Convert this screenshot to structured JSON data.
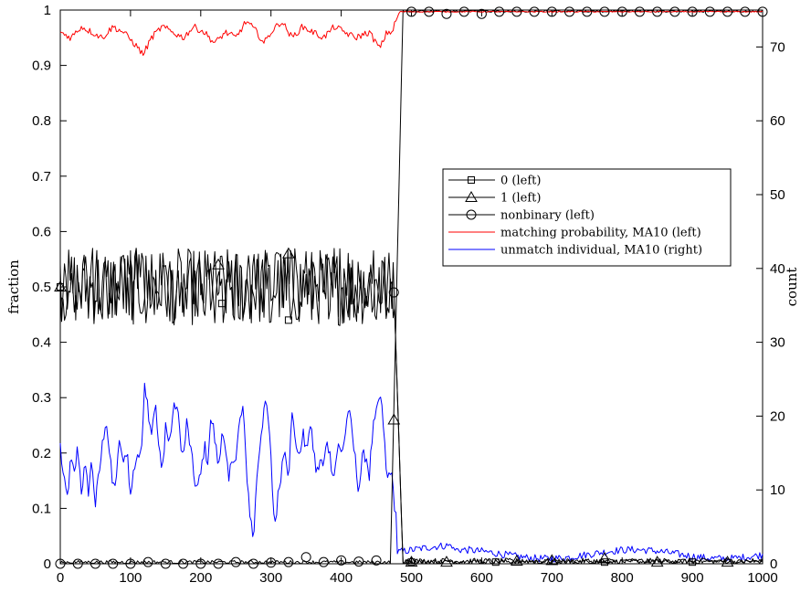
{
  "chart_data": {
    "type": "line",
    "xlim": [
      0,
      1000
    ],
    "ylim_left": [
      0,
      1
    ],
    "ylim_right": [
      0,
      75
    ],
    "ylabel_left": "fraction",
    "ylabel_right": "count",
    "x_ticks": [
      "0",
      "100",
      "200",
      "300",
      "400",
      "500",
      "600",
      "700",
      "800",
      "900",
      "1000"
    ],
    "y_left_ticks": [
      "0",
      "0.1",
      "0.2",
      "0.3",
      "0.4",
      "0.5",
      "0.6",
      "0.7",
      "0.8",
      "0.9",
      "1"
    ],
    "y_right_ticks": [
      "0",
      "10",
      "20",
      "30",
      "40",
      "50",
      "60",
      "70"
    ],
    "transition_x": 480,
    "grid": false,
    "legend_position": "center-right",
    "series": [
      {
        "name": "0 (left)",
        "axis": "left",
        "color": "#000000",
        "marker": "square",
        "before_mean": 0.5,
        "before_amplitude": 0.07,
        "after_mean": 0.0,
        "after_amplitude": 0.004,
        "marker_points": [
          [
            0,
            0.5
          ],
          [
            230,
            0.47
          ],
          [
            325,
            0.44
          ],
          [
            500,
            0.003
          ],
          [
            620,
            0.003
          ],
          [
            775,
            0.003
          ],
          [
            900,
            0.003
          ]
        ]
      },
      {
        "name": "1 (left)",
        "axis": "left",
        "color": "#000000",
        "marker": "triangle",
        "before_mean": 0.5,
        "before_amplitude": 0.07,
        "after_mean": 0.0,
        "after_amplitude": 0.005,
        "marker_points": [
          [
            0,
            0.5
          ],
          [
            225,
            0.54
          ],
          [
            325,
            0.56
          ],
          [
            475,
            0.26
          ],
          [
            500,
            0.003
          ],
          [
            550,
            0.003
          ],
          [
            650,
            0.005
          ],
          [
            700,
            0.006
          ],
          [
            775,
            0.01
          ],
          [
            850,
            0.003
          ],
          [
            950,
            0.003
          ]
        ]
      },
      {
        "name": "nonbinary (left)",
        "axis": "left",
        "color": "#000000",
        "marker": "circle",
        "before_mean": 0.0,
        "before_amplitude": 0.006,
        "after_mean": 1.0,
        "after_amplitude": 0.004,
        "marker_points": [
          [
            0,
            0
          ],
          [
            25,
            0
          ],
          [
            50,
            0
          ],
          [
            75,
            0
          ],
          [
            100,
            0
          ],
          [
            125,
            0.003
          ],
          [
            150,
            0
          ],
          [
            175,
            0
          ],
          [
            200,
            0
          ],
          [
            225,
            0
          ],
          [
            250,
            0.003
          ],
          [
            275,
            0
          ],
          [
            300,
            0.002
          ],
          [
            325,
            0.003
          ],
          [
            350,
            0.012
          ],
          [
            375,
            0.003
          ],
          [
            400,
            0.006
          ],
          [
            425,
            0.004
          ],
          [
            450,
            0.006
          ],
          [
            475,
            0.49
          ],
          [
            500,
            0.997
          ],
          [
            525,
            0.997
          ],
          [
            550,
            0.993
          ],
          [
            575,
            0.997
          ],
          [
            600,
            0.993
          ],
          [
            625,
            0.997
          ],
          [
            650,
            0.997
          ],
          [
            675,
            0.997
          ],
          [
            700,
            0.997
          ],
          [
            725,
            0.997
          ],
          [
            750,
            0.997
          ],
          [
            775,
            0.997
          ],
          [
            800,
            0.997
          ],
          [
            825,
            0.997
          ],
          [
            850,
            0.997
          ],
          [
            875,
            0.997
          ],
          [
            900,
            0.997
          ],
          [
            925,
            0.997
          ],
          [
            950,
            0.997
          ],
          [
            975,
            0.997
          ],
          [
            1000,
            0.997
          ]
        ]
      },
      {
        "name": "matching probability, MA10 (left)",
        "axis": "left",
        "color": "#ff0000",
        "points": [
          [
            0,
            0.96
          ],
          [
            15,
            0.95
          ],
          [
            30,
            0.97
          ],
          [
            45,
            0.96
          ],
          [
            60,
            0.95
          ],
          [
            75,
            0.97
          ],
          [
            90,
            0.96
          ],
          [
            105,
            0.94
          ],
          [
            118,
            0.92
          ],
          [
            130,
            0.95
          ],
          [
            145,
            0.97
          ],
          [
            160,
            0.96
          ],
          [
            175,
            0.95
          ],
          [
            190,
            0.97
          ],
          [
            205,
            0.96
          ],
          [
            220,
            0.94
          ],
          [
            235,
            0.96
          ],
          [
            250,
            0.95
          ],
          [
            265,
            0.98
          ],
          [
            280,
            0.96
          ],
          [
            290,
            0.94
          ],
          [
            300,
            0.96
          ],
          [
            315,
            0.98
          ],
          [
            330,
            0.95
          ],
          [
            345,
            0.97
          ],
          [
            360,
            0.96
          ],
          [
            375,
            0.95
          ],
          [
            390,
            0.97
          ],
          [
            405,
            0.96
          ],
          [
            420,
            0.95
          ],
          [
            440,
            0.96
          ],
          [
            455,
            0.93
          ],
          [
            465,
            0.96
          ],
          [
            472,
            0.96
          ],
          [
            478,
            0.98
          ],
          [
            483,
            0.997
          ],
          [
            500,
            0.997
          ],
          [
            1000,
            0.997
          ]
        ],
        "after_mean": 0.997
      },
      {
        "name": "unmatch individual, MA10 (right)",
        "axis": "right",
        "color": "#0000ff",
        "points": [
          [
            0,
            16
          ],
          [
            5,
            11
          ],
          [
            10,
            9
          ],
          [
            15,
            14
          ],
          [
            20,
            12
          ],
          [
            25,
            16
          ],
          [
            30,
            10
          ],
          [
            35,
            13
          ],
          [
            40,
            10
          ],
          [
            45,
            14
          ],
          [
            50,
            8
          ],
          [
            55,
            12
          ],
          [
            60,
            16
          ],
          [
            65,
            20
          ],
          [
            70,
            15
          ],
          [
            75,
            10
          ],
          [
            80,
            12
          ],
          [
            85,
            17
          ],
          [
            90,
            13
          ],
          [
            95,
            16
          ],
          [
            100,
            9
          ],
          [
            105,
            13
          ],
          [
            110,
            15
          ],
          [
            115,
            14
          ],
          [
            120,
            25
          ],
          [
            125,
            21
          ],
          [
            130,
            18
          ],
          [
            135,
            22
          ],
          [
            140,
            16
          ],
          [
            145,
            12
          ],
          [
            150,
            19
          ],
          [
            155,
            16
          ],
          [
            160,
            20
          ],
          [
            165,
            22
          ],
          [
            170,
            18
          ],
          [
            175,
            14
          ],
          [
            180,
            19
          ],
          [
            185,
            16
          ],
          [
            190,
            12
          ],
          [
            195,
            10
          ],
          [
            200,
            12
          ],
          [
            205,
            16
          ],
          [
            210,
            14
          ],
          [
            215,
            20
          ],
          [
            220,
            17
          ],
          [
            225,
            13
          ],
          [
            230,
            18
          ],
          [
            235,
            15
          ],
          [
            240,
            11
          ],
          [
            245,
            15
          ],
          [
            250,
            14
          ],
          [
            255,
            19
          ],
          [
            260,
            21
          ],
          [
            265,
            13
          ],
          [
            270,
            7
          ],
          [
            275,
            3
          ],
          [
            280,
            12
          ],
          [
            285,
            17
          ],
          [
            290,
            21
          ],
          [
            295,
            21
          ],
          [
            300,
            14
          ],
          [
            305,
            5
          ],
          [
            310,
            9
          ],
          [
            315,
            13
          ],
          [
            320,
            16
          ],
          [
            325,
            12
          ],
          [
            330,
            20
          ],
          [
            335,
            17
          ],
          [
            340,
            14
          ],
          [
            345,
            18
          ],
          [
            350,
            15
          ],
          [
            355,
            19
          ],
          [
            360,
            16
          ],
          [
            365,
            12
          ],
          [
            370,
            14
          ],
          [
            375,
            13
          ],
          [
            380,
            17
          ],
          [
            385,
            14
          ],
          [
            390,
            12
          ],
          [
            395,
            16
          ],
          [
            400,
            15
          ],
          [
            405,
            17
          ],
          [
            410,
            21
          ],
          [
            415,
            18
          ],
          [
            420,
            14
          ],
          [
            425,
            10
          ],
          [
            430,
            14
          ],
          [
            435,
            15
          ],
          [
            440,
            12
          ],
          [
            445,
            18
          ],
          [
            450,
            20
          ],
          [
            455,
            23
          ],
          [
            460,
            19
          ],
          [
            465,
            11
          ],
          [
            470,
            13
          ],
          [
            475,
            9
          ],
          [
            480,
            5
          ],
          [
            485,
            3
          ],
          [
            490,
            2
          ],
          [
            500,
            1.5
          ],
          [
            1000,
            1.5
          ]
        ],
        "after_mean": 1.3,
        "after_amplitude": 0.5
      }
    ]
  }
}
